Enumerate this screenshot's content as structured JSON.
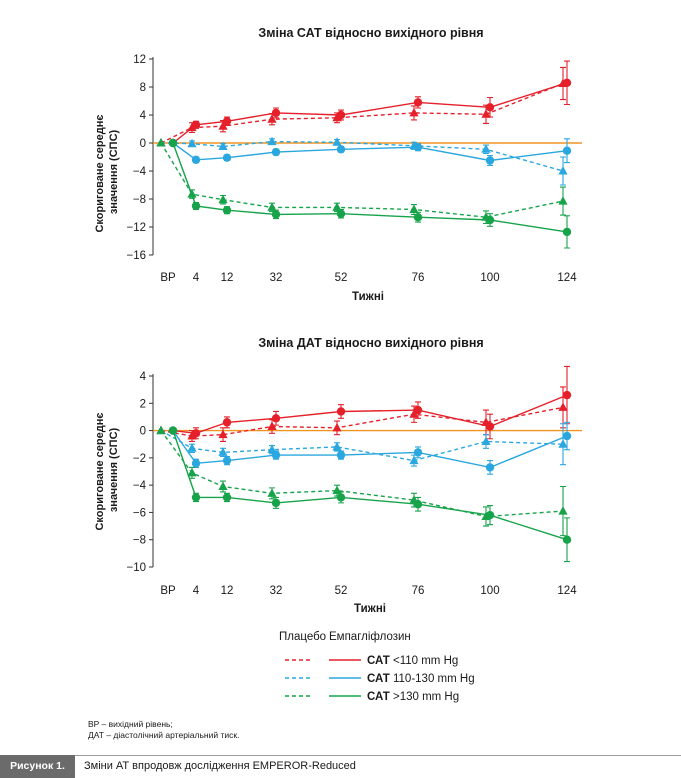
{
  "chart_data": [
    {
      "type": "line",
      "title": "Зміна САТ відносно вихідного рівня",
      "xlabel": "Тижні",
      "ylabel": "Скориговане середнє значення (СПС)",
      "ylim": [
        -16,
        12
      ],
      "yticks": [
        12,
        8,
        4,
        0,
        -4,
        -8,
        -12,
        -16
      ],
      "ytick_labels": [
        "12",
        "8",
        "4",
        "0",
        "−4",
        "−8",
        "−12",
        "−16"
      ],
      "xticks": [
        "BP",
        "4",
        "12",
        "32",
        "52",
        "76",
        "100",
        "124"
      ],
      "series": [
        {
          "group": "САТ <110 mm Hg",
          "arm": "Плацебо",
          "color": "#e5202a",
          "style": "dashed",
          "marker": "triangle",
          "points": [
            {
              "x": 0,
              "y": 0,
              "e": 0
            },
            {
              "x": 4,
              "y": 2.2,
              "e": 0.7
            },
            {
              "x": 12,
              "y": 2.4,
              "e": 0.8
            },
            {
              "x": 32,
              "y": 3.4,
              "e": 0.8
            },
            {
              "x": 52,
              "y": 3.6,
              "e": 0.7
            },
            {
              "x": 76,
              "y": 4.3,
              "e": 1.0
            },
            {
              "x": 100,
              "y": 4.1,
              "e": 1.3
            },
            {
              "x": 124,
              "y": 8.5,
              "e": 2.3
            }
          ]
        },
        {
          "group": "САТ <110 mm Hg",
          "arm": "Емпагліфлозин",
          "color": "#e5202a",
          "style": "solid",
          "marker": "circle",
          "points": [
            {
              "x": 0,
              "y": 0,
              "e": 0
            },
            {
              "x": 4,
              "y": 2.6,
              "e": 0.5
            },
            {
              "x": 12,
              "y": 3.1,
              "e": 0.6
            },
            {
              "x": 32,
              "y": 4.3,
              "e": 0.7
            },
            {
              "x": 52,
              "y": 4.0,
              "e": 0.7
            },
            {
              "x": 76,
              "y": 5.8,
              "e": 0.8
            },
            {
              "x": 100,
              "y": 5.1,
              "e": 1.4
            },
            {
              "x": 124,
              "y": 8.6,
              "e": 3.1
            }
          ]
        },
        {
          "group": "САТ 110-130 mm Hg",
          "arm": "Плацебо",
          "color": "#2aa7df",
          "style": "dashed",
          "marker": "triangle",
          "points": [
            {
              "x": 0,
              "y": 0,
              "e": 0
            },
            {
              "x": 4,
              "y": -0.1,
              "e": 0.4
            },
            {
              "x": 12,
              "y": -0.5,
              "e": 0.4
            },
            {
              "x": 32,
              "y": 0.2,
              "e": 0.4
            },
            {
              "x": 52,
              "y": 0.1,
              "e": 0.4
            },
            {
              "x": 76,
              "y": -0.4,
              "e": 0.5
            },
            {
              "x": 100,
              "y": -0.9,
              "e": 0.6
            },
            {
              "x": 124,
              "y": -4.0,
              "e": 2.0
            }
          ]
        },
        {
          "group": "САТ 110-130 mm Hg",
          "arm": "Емпагліфлозин",
          "color": "#2aa7df",
          "style": "solid",
          "marker": "circle",
          "points": [
            {
              "x": 0,
              "y": 0,
              "e": 0
            },
            {
              "x": 4,
              "y": -2.4,
              "e": 0.4
            },
            {
              "x": 12,
              "y": -2.1,
              "e": 0.4
            },
            {
              "x": 32,
              "y": -1.3,
              "e": 0.4
            },
            {
              "x": 52,
              "y": -0.9,
              "e": 0.4
            },
            {
              "x": 76,
              "y": -0.6,
              "e": 0.5
            },
            {
              "x": 100,
              "y": -2.5,
              "e": 0.7
            },
            {
              "x": 124,
              "y": -1.1,
              "e": 1.7
            }
          ]
        },
        {
          "group": "САТ >130 mm Hg",
          "arm": "Плацебо",
          "color": "#17a34a",
          "style": "dashed",
          "marker": "triangle",
          "points": [
            {
              "x": 0,
              "y": 0,
              "e": 0
            },
            {
              "x": 4,
              "y": -7.3,
              "e": 0.6
            },
            {
              "x": 12,
              "y": -8.1,
              "e": 0.6
            },
            {
              "x": 32,
              "y": -9.2,
              "e": 0.6
            },
            {
              "x": 52,
              "y": -9.2,
              "e": 0.6
            },
            {
              "x": 76,
              "y": -9.5,
              "e": 0.7
            },
            {
              "x": 100,
              "y": -10.6,
              "e": 0.9
            },
            {
              "x": 124,
              "y": -8.3,
              "e": 2.0
            }
          ]
        },
        {
          "group": "САТ >130 mm Hg",
          "arm": "Емпагліфлозин",
          "color": "#17a34a",
          "style": "solid",
          "marker": "circle",
          "points": [
            {
              "x": 0,
              "y": 0,
              "e": 0
            },
            {
              "x": 4,
              "y": -9.0,
              "e": 0.5
            },
            {
              "x": 12,
              "y": -9.6,
              "e": 0.5
            },
            {
              "x": 32,
              "y": -10.2,
              "e": 0.6
            },
            {
              "x": 52,
              "y": -10.1,
              "e": 0.6
            },
            {
              "x": 76,
              "y": -10.6,
              "e": 0.7
            },
            {
              "x": 100,
              "y": -11.0,
              "e": 0.9
            },
            {
              "x": 124,
              "y": -12.7,
              "e": 2.3
            }
          ]
        }
      ]
    },
    {
      "type": "line",
      "title": "Зміна ДАТ відносно вихідного рівня",
      "xlabel": "Тижні",
      "ylabel": "Скориговане середнє значення (СПС)",
      "ylim": [
        -10,
        4
      ],
      "yticks": [
        4,
        2,
        0,
        -2,
        -4,
        -6,
        -8,
        -10
      ],
      "ytick_labels": [
        "4",
        "2",
        "0",
        "−2",
        "−4",
        "−6",
        "−8",
        "−10"
      ],
      "xticks": [
        "BP",
        "4",
        "12",
        "32",
        "52",
        "76",
        "100",
        "124"
      ],
      "series": [
        {
          "group": "САТ <110 mm Hg",
          "arm": "Плацебо",
          "color": "#e5202a",
          "style": "dashed",
          "marker": "triangle",
          "points": [
            {
              "x": 0,
              "y": 0,
              "e": 0
            },
            {
              "x": 4,
              "y": -0.4,
              "e": 0.4
            },
            {
              "x": 12,
              "y": -0.3,
              "e": 0.5
            },
            {
              "x": 32,
              "y": 0.3,
              "e": 0.5
            },
            {
              "x": 52,
              "y": 0.2,
              "e": 0.5
            },
            {
              "x": 76,
              "y": 1.2,
              "e": 0.6
            },
            {
              "x": 100,
              "y": 0.6,
              "e": 0.9
            },
            {
              "x": 124,
              "y": 1.7,
              "e": 1.5
            }
          ]
        },
        {
          "group": "САТ <110 mm Hg",
          "arm": "Емпагліфлозин",
          "color": "#e5202a",
          "style": "solid",
          "marker": "circle",
          "points": [
            {
              "x": 0,
              "y": 0,
              "e": 0
            },
            {
              "x": 4,
              "y": -0.2,
              "e": 0.4
            },
            {
              "x": 12,
              "y": 0.6,
              "e": 0.4
            },
            {
              "x": 32,
              "y": 0.9,
              "e": 0.5
            },
            {
              "x": 52,
              "y": 1.4,
              "e": 0.5
            },
            {
              "x": 76,
              "y": 1.5,
              "e": 0.6
            },
            {
              "x": 100,
              "y": 0.3,
              "e": 0.9
            },
            {
              "x": 124,
              "y": 2.6,
              "e": 2.1
            }
          ]
        },
        {
          "group": "САТ 110-130 mm Hg",
          "arm": "Плацебо",
          "color": "#2aa7df",
          "style": "dashed",
          "marker": "triangle",
          "points": [
            {
              "x": 0,
              "y": 0,
              "e": 0
            },
            {
              "x": 4,
              "y": -1.3,
              "e": 0.3
            },
            {
              "x": 12,
              "y": -1.6,
              "e": 0.3
            },
            {
              "x": 32,
              "y": -1.4,
              "e": 0.3
            },
            {
              "x": 52,
              "y": -1.2,
              "e": 0.3
            },
            {
              "x": 76,
              "y": -2.2,
              "e": 0.4
            },
            {
              "x": 100,
              "y": -0.8,
              "e": 0.5
            },
            {
              "x": 124,
              "y": -1.0,
              "e": 1.5
            }
          ]
        },
        {
          "group": "САТ 110-130 mm Hg",
          "arm": "Емпагліфлозин",
          "color": "#2aa7df",
          "style": "solid",
          "marker": "circle",
          "points": [
            {
              "x": 0,
              "y": 0,
              "e": 0
            },
            {
              "x": 4,
              "y": -2.4,
              "e": 0.3
            },
            {
              "x": 12,
              "y": -2.2,
              "e": 0.3
            },
            {
              "x": 32,
              "y": -1.8,
              "e": 0.3
            },
            {
              "x": 52,
              "y": -1.8,
              "e": 0.3
            },
            {
              "x": 76,
              "y": -1.6,
              "e": 0.4
            },
            {
              "x": 100,
              "y": -2.7,
              "e": 0.5
            },
            {
              "x": 124,
              "y": -0.4,
              "e": 1.0
            }
          ]
        },
        {
          "group": "САТ >130 mm Hg",
          "arm": "Плацебо",
          "color": "#17a34a",
          "style": "dashed",
          "marker": "triangle",
          "points": [
            {
              "x": 0,
              "y": 0,
              "e": 0
            },
            {
              "x": 4,
              "y": -3.1,
              "e": 0.4
            },
            {
              "x": 12,
              "y": -4.1,
              "e": 0.4
            },
            {
              "x": 32,
              "y": -4.6,
              "e": 0.4
            },
            {
              "x": 52,
              "y": -4.4,
              "e": 0.4
            },
            {
              "x": 76,
              "y": -5.1,
              "e": 0.5
            },
            {
              "x": 100,
              "y": -6.3,
              "e": 0.7
            },
            {
              "x": 124,
              "y": -5.9,
              "e": 1.8
            }
          ]
        },
        {
          "group": "САТ >130 mm Hg",
          "arm": "Емпагліфлозин",
          "color": "#17a34a",
          "style": "solid",
          "marker": "circle",
          "points": [
            {
              "x": 0,
              "y": 0,
              "e": 0
            },
            {
              "x": 4,
              "y": -4.9,
              "e": 0.3
            },
            {
              "x": 12,
              "y": -4.9,
              "e": 0.3
            },
            {
              "x": 32,
              "y": -5.3,
              "e": 0.4
            },
            {
              "x": 52,
              "y": -4.9,
              "e": 0.4
            },
            {
              "x": 76,
              "y": -5.4,
              "e": 0.5
            },
            {
              "x": 100,
              "y": -6.2,
              "e": 0.7
            },
            {
              "x": 124,
              "y": -8.0,
              "e": 1.6
            }
          ]
        }
      ]
    }
  ],
  "legend": {
    "placebo_label": "Плацебо",
    "empa_label": "Емпагліфлозин",
    "rows": [
      {
        "label": "САТ <110 mm Hg",
        "prefix": "САТ ",
        "range": "<110 mm Hg",
        "color": "#e5202a"
      },
      {
        "label": "САТ 110-130 mm Hg",
        "prefix": "САТ ",
        "range": "110-130 mm Hg",
        "color": "#2aa7df"
      },
      {
        "label": "САТ >130 mm Hg",
        "prefix": "САТ ",
        "range": ">130 mm Hg",
        "color": "#17a34a"
      }
    ]
  },
  "reference_line_color": "#f29422",
  "notes": [
    "BP – вихідний рівень;",
    "ДАТ – діастолічний артеріальний тиск."
  ],
  "caption": {
    "label": "Рисунок 1.",
    "text": "Зміни АТ впродовж дослідження EMPEROR-Reduced"
  }
}
